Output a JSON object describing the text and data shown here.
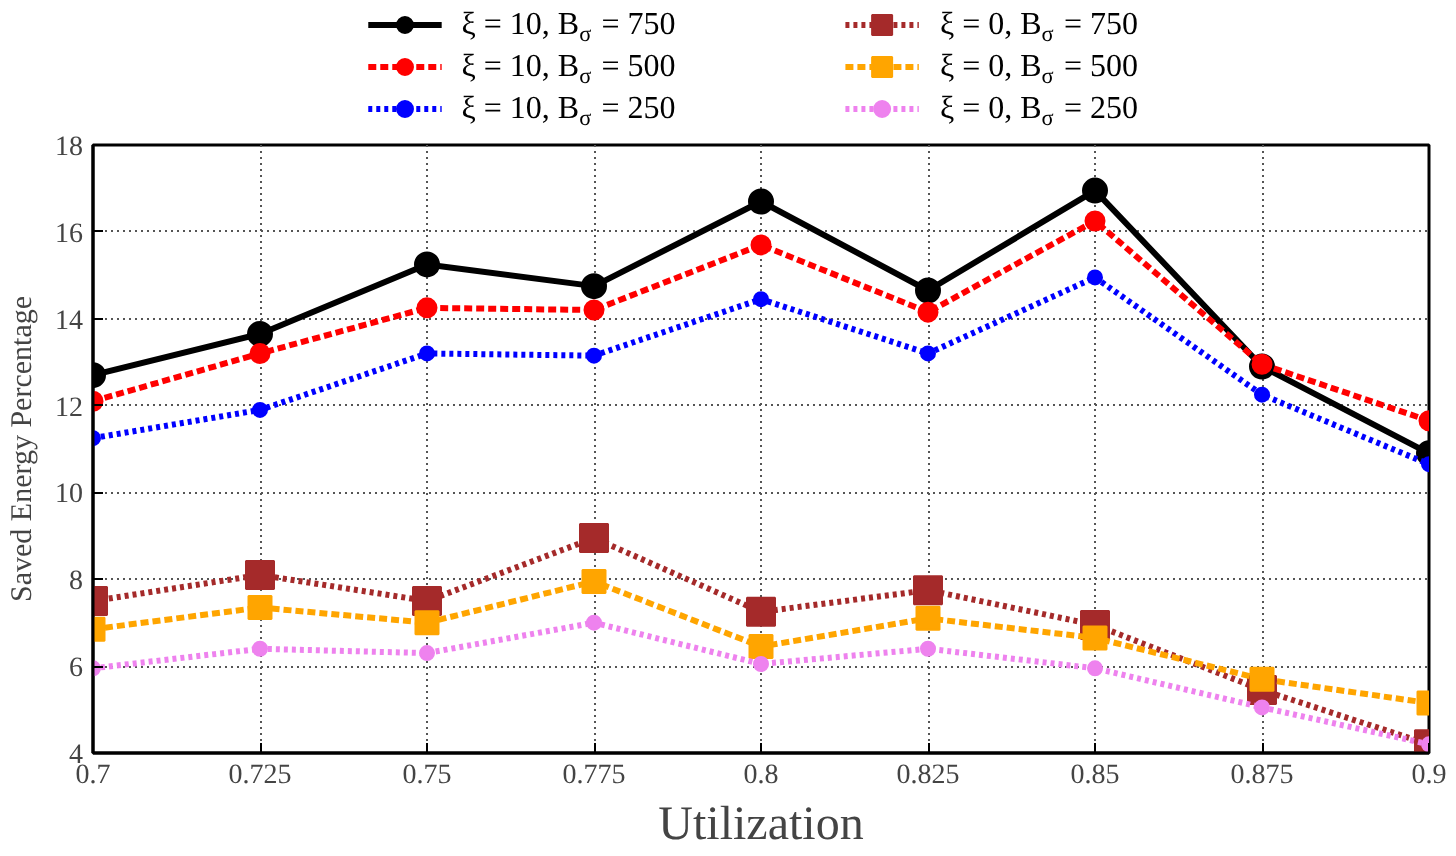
{
  "chart_data": {
    "type": "line",
    "xlabel": "Utilization",
    "ylabel": "Saved Energy Percentage",
    "x": [
      0.7,
      0.725,
      0.75,
      0.775,
      0.8,
      0.825,
      0.85,
      0.875,
      0.9
    ],
    "xlim": [
      0.7,
      0.9
    ],
    "xticks": [
      0.7,
      0.725,
      0.75,
      0.775,
      0.8,
      0.825,
      0.85,
      0.875,
      0.9
    ],
    "ylim": [
      4,
      18
    ],
    "yticks": [
      4,
      6,
      8,
      10,
      12,
      14,
      16,
      18
    ],
    "grid": true,
    "legend": "top",
    "series": [
      {
        "name": "ξ = 10, B$_{σ}$ = 750",
        "color": "#000000",
        "marker": "circle",
        "line_style": "solid",
        "values": [
          12.7,
          13.65,
          15.25,
          14.75,
          16.7,
          14.65,
          16.95,
          12.9,
          10.9
        ]
      },
      {
        "name": "ξ = 10, B$_{σ}$ = 500",
        "color": "#ff0000",
        "marker": "circle",
        "line_style": "dashed",
        "values": [
          12.1,
          13.2,
          14.25,
          14.2,
          15.7,
          14.15,
          16.25,
          12.95,
          11.65
        ]
      },
      {
        "name": "ξ = 10, B$_{σ}$ = 250",
        "color": "#0000ff",
        "marker": "circle",
        "line_style": "dotted",
        "values": [
          11.25,
          11.9,
          13.2,
          13.15,
          14.45,
          13.2,
          14.95,
          12.25,
          10.65
        ]
      },
      {
        "name": "ξ = 0, B$_{σ}$ = 750",
        "color": "#a52a2a",
        "marker": "square",
        "line_style": "dotted",
        "values": [
          7.5,
          8.1,
          7.5,
          8.95,
          7.25,
          7.75,
          6.95,
          5.45,
          4.2
        ]
      },
      {
        "name": "ξ = 0, B$_{σ}$ = 500",
        "color": "#ffa500",
        "marker": "square",
        "line_style": "dashed",
        "values": [
          6.85,
          7.35,
          7.0,
          7.95,
          6.45,
          7.1,
          6.65,
          5.7,
          5.15
        ]
      },
      {
        "name": "ξ = 0, B$_{σ}$ = 250",
        "color": "#ee82ee",
        "marker": "circle",
        "line_style": "dotted",
        "values": [
          5.95,
          6.4,
          6.3,
          7.0,
          6.05,
          6.4,
          5.95,
          5.05,
          4.2
        ]
      }
    ]
  }
}
